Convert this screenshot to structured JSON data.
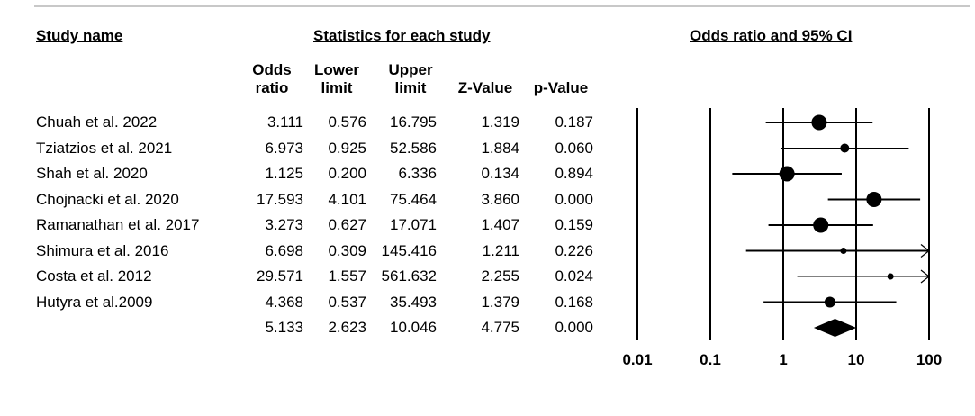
{
  "headers": {
    "study_name": "Study name",
    "statistics": "Statistics for each study",
    "plot_title": "Odds ratio and 95% CI"
  },
  "columns": [
    {
      "line1": "Odds",
      "line2": "ratio"
    },
    {
      "line1": "Lower",
      "line2": "limit"
    },
    {
      "line1": "Upper",
      "line2": "limit"
    },
    {
      "line1": "",
      "line2": "Z-Value"
    },
    {
      "line1": "",
      "line2": "p-Value"
    }
  ],
  "rows": [
    {
      "study": "Chuah et al. 2022",
      "or": "3.111",
      "lower": "0.576",
      "upper": "16.795",
      "z": "1.319",
      "p": "0.187"
    },
    {
      "study": "Tziatzios et al. 2021",
      "or": "6.973",
      "lower": "0.925",
      "upper": "52.586",
      "z": "1.884",
      "p": "0.060"
    },
    {
      "study": "Shah et al. 2020",
      "or": "1.125",
      "lower": "0.200",
      "upper": "6.336",
      "z": "0.134",
      "p": "0.894"
    },
    {
      "study": "Chojnacki et al. 2020",
      "or": "17.593",
      "lower": "4.101",
      "upper": "75.464",
      "z": "3.860",
      "p": "0.000"
    },
    {
      "study": "Ramanathan et al. 2017",
      "or": "3.273",
      "lower": "0.627",
      "upper": "17.071",
      "z": "1.407",
      "p": "0.159"
    },
    {
      "study": "Shimura et al. 2016",
      "or": "6.698",
      "lower": "0.309",
      "upper": "145.416",
      "z": "1.211",
      "p": "0.226"
    },
    {
      "study": "Costa et al. 2012",
      "or": "29.571",
      "lower": "1.557",
      "upper": "561.632",
      "z": "2.255",
      "p": "0.024"
    },
    {
      "study": "Hutyra et al.2009",
      "or": "4.368",
      "lower": "0.537",
      "upper": "35.493",
      "z": "1.379",
      "p": "0.168"
    }
  ],
  "pooled": {
    "or": "5.133",
    "lower": "2.623",
    "upper": "10.046",
    "z": "4.775",
    "p": "0.000"
  },
  "chart_data": {
    "type": "scatter",
    "title": "Odds ratio and 95% CI",
    "x_scale": "log",
    "xlim": [
      0.01,
      100
    ],
    "x_ticks": [
      "0.01",
      "0.1",
      "1",
      "10",
      "100"
    ],
    "studies": [
      {
        "label": "Chuah et al. 2022",
        "or": 3.111,
        "lower": 0.576,
        "upper": 16.795,
        "marker": "large"
      },
      {
        "label": "Tziatzios et al. 2021",
        "or": 6.973,
        "lower": 0.925,
        "upper": 52.586,
        "marker": "small"
      },
      {
        "label": "Shah et al. 2020",
        "or": 1.125,
        "lower": 0.2,
        "upper": 6.336,
        "marker": "large"
      },
      {
        "label": "Chojnacki et al. 2020",
        "or": 17.593,
        "lower": 4.101,
        "upper": 75.464,
        "marker": "large"
      },
      {
        "label": "Ramanathan et al. 2017",
        "or": 3.273,
        "lower": 0.627,
        "upper": 17.071,
        "marker": "large"
      },
      {
        "label": "Shimura et al. 2016",
        "or": 6.698,
        "lower": 0.309,
        "upper": 145.416,
        "marker": "tiny"
      },
      {
        "label": "Costa et al. 2012",
        "or": 29.571,
        "lower": 1.557,
        "upper": 561.632,
        "marker": "tiny"
      },
      {
        "label": "Hutyra et al.2009",
        "or": 4.368,
        "lower": 0.537,
        "upper": 35.493,
        "marker": "medium"
      }
    ],
    "pooled": {
      "or": 5.133,
      "lower": 2.623,
      "upper": 10.046
    }
  }
}
